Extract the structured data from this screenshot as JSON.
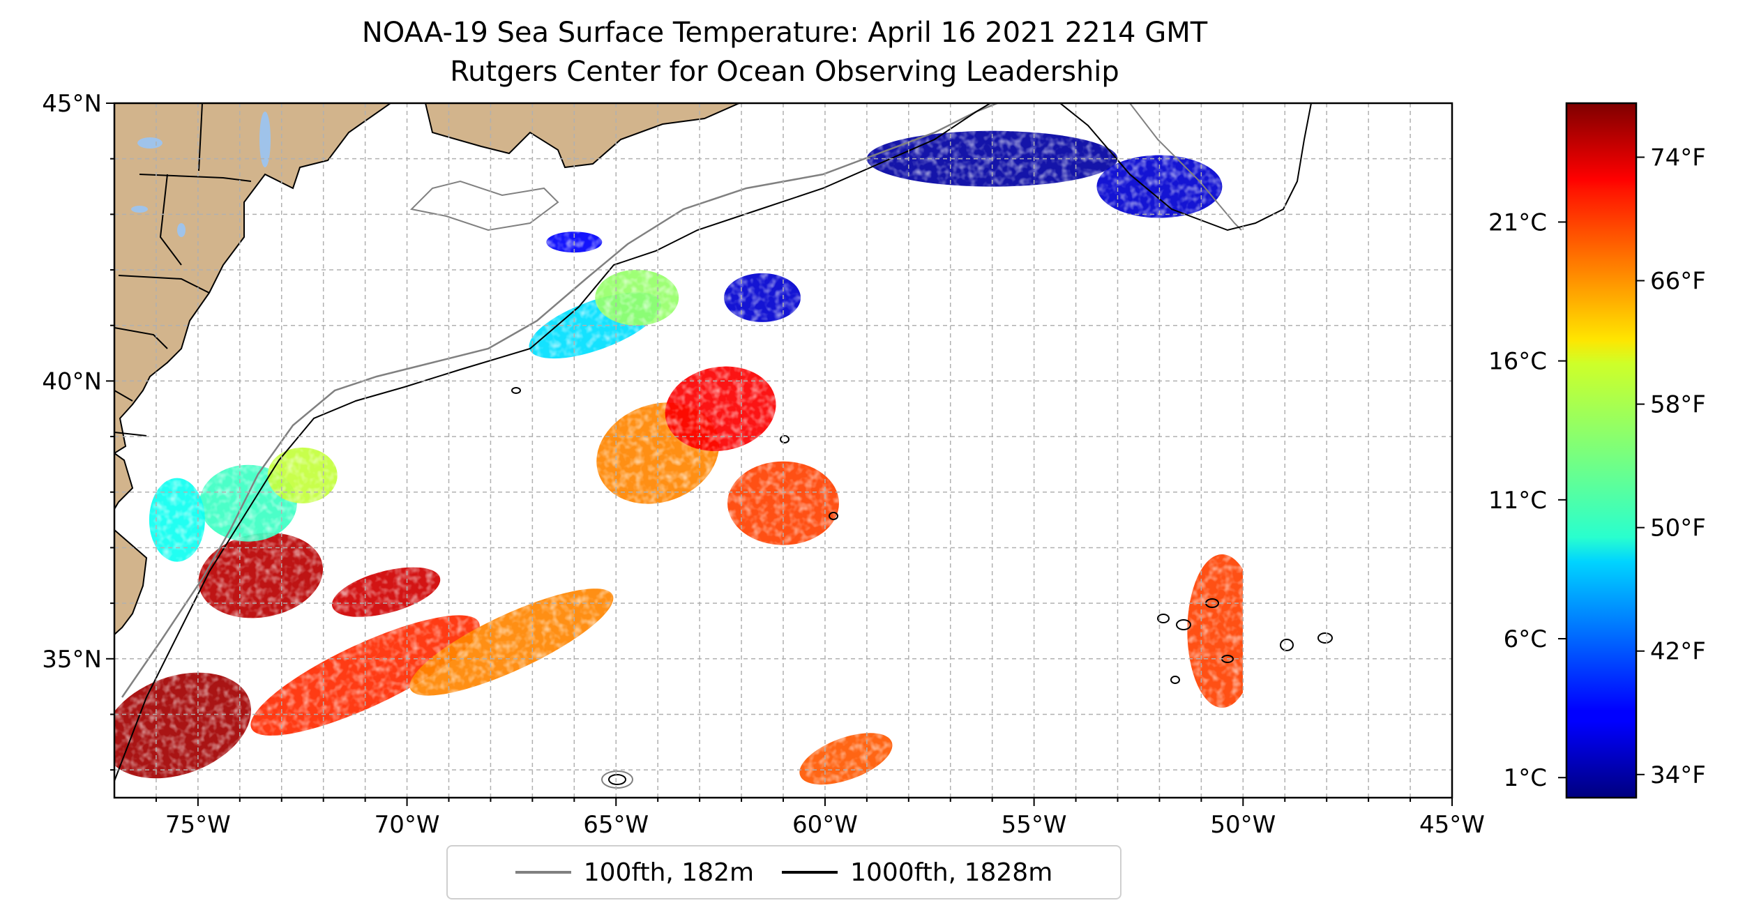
{
  "title": "NOAA-19 Sea Surface Temperature: April 16 2021 2214 GMT",
  "subtitle": "Rutgers Center for Ocean Observing Leadership",
  "map": {
    "lon_range": [
      -77,
      -45
    ],
    "lat_range": [
      32.5,
      45
    ],
    "lon_ticks": [
      "75°W",
      "70°W",
      "65°W",
      "60°W",
      "55°W",
      "50°W",
      "45°W"
    ],
    "lat_ticks": [
      "45°N",
      "40°N",
      "35°N"
    ],
    "gridlines": true,
    "land_color": "#d2b48c",
    "lake_color": "#9fc3ea",
    "data_edge_lon": -50
  },
  "legend": {
    "placement": "bottom-center",
    "items": [
      {
        "label": "100fth, 182m",
        "color": "#808080"
      },
      {
        "label": "1000fth, 1828m",
        "color": "#000000"
      }
    ]
  },
  "colorbar": {
    "colormap": "jet",
    "celsius_ticks": [
      "21°C",
      "16°C",
      "11°C",
      "6°C",
      "1°C"
    ],
    "fahrenheit_ticks": [
      "74°F",
      "66°F",
      "58°F",
      "50°F",
      "42°F",
      "34°F"
    ]
  },
  "chart_data": {
    "type": "heatmap",
    "title": "NOAA-19 Sea Surface Temperature: April 16 2021 2214 GMT",
    "subtitle": "Rutgers Center for Ocean Observing Leadership",
    "xlabel": "",
    "ylabel": "",
    "x_range_deg": [
      -77,
      -45
    ],
    "y_range_deg": [
      32.5,
      45
    ],
    "colorbar_range_F": [
      32.5,
      77.5
    ],
    "regions": [
      {
        "lon": -75.5,
        "lat": 33.8,
        "temp_F": 76
      },
      {
        "lon": -73.5,
        "lat": 36.5,
        "temp_F": 75
      },
      {
        "lon": -70.5,
        "lat": 36.2,
        "temp_F": 74
      },
      {
        "lon": -71,
        "lat": 34.7,
        "temp_F": 70
      },
      {
        "lon": -67.5,
        "lat": 35.3,
        "temp_F": 66
      },
      {
        "lon": -64,
        "lat": 38.7,
        "temp_F": 66
      },
      {
        "lon": -62.5,
        "lat": 39.5,
        "temp_F": 72
      },
      {
        "lon": -61,
        "lat": 37.8,
        "temp_F": 69
      },
      {
        "lon": -59.5,
        "lat": 33.2,
        "temp_F": 68
      },
      {
        "lon": -50.5,
        "lat": 35.5,
        "temp_F": 69
      },
      {
        "lon": -73.8,
        "lat": 37.8,
        "temp_F": 52
      },
      {
        "lon": -75.5,
        "lat": 37.5,
        "temp_F": 50
      },
      {
        "lon": -72.5,
        "lat": 38.3,
        "temp_F": 58
      },
      {
        "lon": -65.5,
        "lat": 41,
        "temp_F": 48
      },
      {
        "lon": -64.5,
        "lat": 41.5,
        "temp_F": 56
      },
      {
        "lon": -61.5,
        "lat": 41.5,
        "temp_F": 36
      },
      {
        "lon": -56,
        "lat": 44,
        "temp_F": 34
      },
      {
        "lon": -52,
        "lat": 43.5,
        "temp_F": 36
      },
      {
        "lon": -66,
        "lat": 42.5,
        "temp_F": 38
      }
    ]
  }
}
